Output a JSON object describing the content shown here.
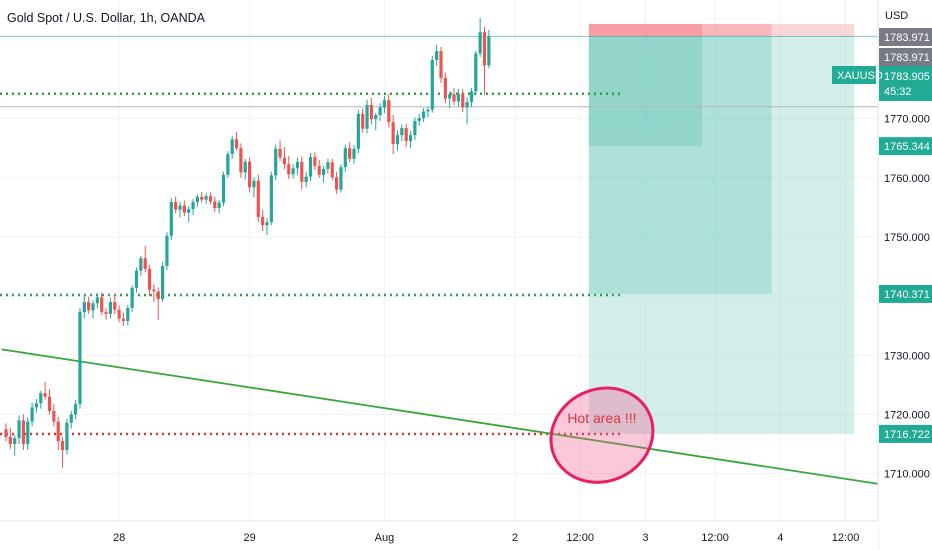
{
  "chart_data": {
    "type": "candlestick",
    "title": "Gold Spot / U.S. Dollar, 1h, OANDA",
    "currency_label": "USD",
    "symbol": "XAUUSD",
    "countdown": "45:32",
    "y_range": [
      1702,
      1787
    ],
    "y_ticks": [
      1710,
      1720,
      1730,
      1740,
      1750,
      1760,
      1770
    ],
    "y_tick_labels": [
      "1710.000",
      "1720.000",
      "1730.000",
      "1740.000",
      "1750.000",
      "1760.000",
      "1770.000"
    ],
    "x_ticks": [
      {
        "label": "28",
        "bar": 26
      },
      {
        "label": "29",
        "bar": 56
      },
      {
        "label": "Aug",
        "bar": 87
      },
      {
        "label": "2",
        "bar": 117
      },
      {
        "label": "12:00",
        "bar": 132
      },
      {
        "label": "3",
        "bar": 147
      },
      {
        "label": "12:00",
        "bar": 163
      },
      {
        "label": "4",
        "bar": 178
      },
      {
        "label": "12:00",
        "bar": 193
      }
    ],
    "price_levels": [
      {
        "name": "current price",
        "value": 1783.905,
        "color": "#22ab94",
        "label": "1783.905"
      },
      {
        "name": "stop level",
        "value": 1783.971,
        "color": "#787b86",
        "label": "1783.971"
      },
      {
        "name": "upper stop",
        "value": 1783.971,
        "color": "#787b86",
        "label": "1783.971"
      },
      {
        "name": "target 1",
        "value": 1765.344,
        "color": "#22ab94",
        "label": "1765.344"
      },
      {
        "name": "target 2",
        "value": 1740.371,
        "color": "#22ab94",
        "label": "1740.371"
      },
      {
        "name": "target 3",
        "value": 1716.722,
        "color": "#22ab94",
        "label": "1716.722"
      }
    ],
    "horizontal_lines": [
      {
        "value": 1774.2,
        "style": "dotted",
        "color": "#2e9e4a"
      },
      {
        "value": 1740.2,
        "style": "dotted",
        "color": "#2e9e4a"
      },
      {
        "value": 1716.7,
        "style": "dotted",
        "color": "#e0323c"
      },
      {
        "value": 1772.0,
        "style": "solid",
        "color": "#b2b5be"
      }
    ],
    "trendline": {
      "from": {
        "bar": -1,
        "value": 1731.0
      },
      "to": {
        "bar": 203,
        "value": 1708.0
      },
      "color": "#3aa63a"
    },
    "positions": [
      {
        "entry": 1783.9,
        "stop": 1786.0,
        "target": 1765.344,
        "start_bar": 134,
        "end_bar": 160
      },
      {
        "entry": 1783.9,
        "stop": 1786.0,
        "target": 1740.371,
        "start_bar": 134,
        "end_bar": 176
      },
      {
        "entry": 1783.9,
        "stop": 1786.0,
        "target": 1716.722,
        "start_bar": 134,
        "end_bar": 195
      }
    ],
    "annotation": {
      "text": "Hot area !!!",
      "bar": 137,
      "value": 1716.5
    },
    "candles": [
      [
        1717.5,
        1718.5,
        1715.5,
        1716.2
      ],
      [
        1716.2,
        1717.8,
        1714.2,
        1715.0
      ],
      [
        1715.0,
        1716.5,
        1713.0,
        1716.0
      ],
      [
        1716.0,
        1719.8,
        1715.0,
        1719.0
      ],
      [
        1719.0,
        1720.0,
        1714.0,
        1715.0
      ],
      [
        1715.0,
        1719.5,
        1714.0,
        1718.8
      ],
      [
        1718.8,
        1722.0,
        1718.0,
        1721.2
      ],
      [
        1721.2,
        1722.6,
        1720.3,
        1721.9
      ],
      [
        1721.9,
        1724.0,
        1721.0,
        1723.6
      ],
      [
        1723.6,
        1725.5,
        1722.5,
        1723.0
      ],
      [
        1723.0,
        1724.3,
        1720.0,
        1720.6
      ],
      [
        1720.6,
        1721.8,
        1718.0,
        1718.8
      ],
      [
        1718.8,
        1719.6,
        1714.0,
        1715.5
      ],
      [
        1715.5,
        1716.2,
        1711.0,
        1714.0
      ],
      [
        1714.0,
        1719.2,
        1713.2,
        1718.6
      ],
      [
        1718.6,
        1720.6,
        1717.6,
        1720.0
      ],
      [
        1720.0,
        1722.5,
        1719.2,
        1721.8
      ],
      [
        1721.8,
        1738.0,
        1721.0,
        1737.3
      ],
      [
        1737.3,
        1740.0,
        1736.3,
        1739.0
      ],
      [
        1739.0,
        1739.9,
        1737.0,
        1737.6
      ],
      [
        1737.6,
        1739.3,
        1736.2,
        1738.8
      ],
      [
        1738.8,
        1740.5,
        1737.9,
        1739.8
      ],
      [
        1739.8,
        1740.6,
        1736.8,
        1737.3
      ],
      [
        1737.3,
        1738.0,
        1736.0,
        1737.0
      ],
      [
        1737.0,
        1739.8,
        1736.2,
        1739.0
      ],
      [
        1739.0,
        1740.2,
        1737.0,
        1737.7
      ],
      [
        1737.7,
        1738.4,
        1735.6,
        1736.2
      ],
      [
        1736.2,
        1737.2,
        1735.0,
        1735.8
      ],
      [
        1735.8,
        1738.5,
        1735.0,
        1738.0
      ],
      [
        1738.0,
        1741.8,
        1737.3,
        1741.4
      ],
      [
        1741.4,
        1744.8,
        1740.6,
        1744.3
      ],
      [
        1744.3,
        1746.8,
        1743.4,
        1746.4
      ],
      [
        1746.4,
        1748.5,
        1744.0,
        1744.6
      ],
      [
        1744.6,
        1745.3,
        1740.0,
        1741.1
      ],
      [
        1741.1,
        1742.0,
        1739.0,
        1740.8
      ],
      [
        1740.8,
        1741.5,
        1736.0,
        1739.5
      ],
      [
        1739.5,
        1745.8,
        1739.0,
        1745.1
      ],
      [
        1745.1,
        1750.8,
        1744.4,
        1750.2
      ],
      [
        1750.2,
        1756.6,
        1749.5,
        1755.9
      ],
      [
        1755.9,
        1756.8,
        1754.0,
        1754.6
      ],
      [
        1754.6,
        1756.0,
        1753.3,
        1755.3
      ],
      [
        1755.3,
        1756.2,
        1753.5,
        1754.1
      ],
      [
        1754.1,
        1755.2,
        1752.5,
        1754.7
      ],
      [
        1754.7,
        1756.4,
        1753.7,
        1755.9
      ],
      [
        1755.9,
        1757.2,
        1755.1,
        1756.8
      ],
      [
        1756.8,
        1757.6,
        1755.8,
        1756.3
      ],
      [
        1756.3,
        1757.4,
        1755.6,
        1756.9
      ],
      [
        1756.9,
        1757.5,
        1755.5,
        1756.0
      ],
      [
        1756.0,
        1756.8,
        1754.2,
        1754.9
      ],
      [
        1754.9,
        1756.2,
        1754.0,
        1755.8
      ],
      [
        1755.8,
        1761.0,
        1755.2,
        1760.5
      ],
      [
        1760.5,
        1764.5,
        1760.0,
        1764.0
      ],
      [
        1764.0,
        1767.1,
        1763.2,
        1766.5
      ],
      [
        1766.5,
        1767.8,
        1764.6,
        1765.0
      ],
      [
        1765.0,
        1765.8,
        1760.0,
        1760.9
      ],
      [
        1760.9,
        1763.2,
        1759.7,
        1762.7
      ],
      [
        1762.7,
        1763.4,
        1757.5,
        1758.4
      ],
      [
        1758.4,
        1760.1,
        1756.7,
        1759.5
      ],
      [
        1759.5,
        1760.5,
        1752.5,
        1753.4
      ],
      [
        1753.4,
        1754.6,
        1751.0,
        1752.0
      ],
      [
        1752.0,
        1753.2,
        1750.3,
        1752.5
      ],
      [
        1752.5,
        1761.0,
        1752.0,
        1760.4
      ],
      [
        1760.4,
        1765.6,
        1759.6,
        1764.9
      ],
      [
        1764.9,
        1766.3,
        1762.8,
        1763.4
      ],
      [
        1763.4,
        1765.2,
        1761.5,
        1762.3
      ],
      [
        1762.3,
        1763.7,
        1759.8,
        1760.6
      ],
      [
        1760.6,
        1762.3,
        1759.9,
        1761.6
      ],
      [
        1761.6,
        1763.4,
        1760.5,
        1762.7
      ],
      [
        1762.7,
        1763.6,
        1758.0,
        1759.3
      ],
      [
        1759.3,
        1761.0,
        1758.4,
        1760.2
      ],
      [
        1760.2,
        1764.2,
        1759.5,
        1763.5
      ],
      [
        1763.5,
        1764.3,
        1761.3,
        1762.0
      ],
      [
        1762.0,
        1763.0,
        1760.0,
        1760.5
      ],
      [
        1760.5,
        1762.0,
        1759.2,
        1761.5
      ],
      [
        1761.5,
        1763.2,
        1760.7,
        1762.6
      ],
      [
        1762.6,
        1763.2,
        1759.6,
        1760.1
      ],
      [
        1760.1,
        1761.0,
        1757.3,
        1758.0
      ],
      [
        1758.0,
        1762.3,
        1757.5,
        1761.8
      ],
      [
        1761.8,
        1765.6,
        1761.0,
        1765.0
      ],
      [
        1765.0,
        1766.0,
        1762.6,
        1763.2
      ],
      [
        1763.2,
        1765.5,
        1762.4,
        1764.9
      ],
      [
        1764.9,
        1771.5,
        1764.1,
        1770.8
      ],
      [
        1770.8,
        1771.7,
        1767.6,
        1768.3
      ],
      [
        1768.3,
        1773.2,
        1767.5,
        1772.3
      ],
      [
        1772.3,
        1773.5,
        1769.0,
        1769.9
      ],
      [
        1769.9,
        1771.0,
        1768.0,
        1770.6
      ],
      [
        1770.6,
        1772.6,
        1769.6,
        1771.9
      ],
      [
        1771.9,
        1773.8,
        1770.9,
        1773.1
      ],
      [
        1773.1,
        1774.2,
        1768.5,
        1769.4
      ],
      [
        1769.4,
        1770.6,
        1764.0,
        1765.7
      ],
      [
        1765.7,
        1768.0,
        1764.6,
        1767.2
      ],
      [
        1767.2,
        1769.0,
        1766.2,
        1768.4
      ],
      [
        1768.4,
        1769.1,
        1765.2,
        1766.2
      ],
      [
        1766.2,
        1767.9,
        1765.0,
        1767.2
      ],
      [
        1767.2,
        1770.2,
        1766.4,
        1769.6
      ],
      [
        1769.6,
        1770.8,
        1768.8,
        1770.1
      ],
      [
        1770.1,
        1771.8,
        1769.4,
        1771.2
      ],
      [
        1771.2,
        1772.0,
        1770.2,
        1771.5
      ],
      [
        1771.5,
        1780.6,
        1771.0,
        1779.9
      ],
      [
        1779.9,
        1782.5,
        1778.9,
        1781.4
      ],
      [
        1781.4,
        1782.1,
        1776.0,
        1776.9
      ],
      [
        1776.9,
        1777.8,
        1772.6,
        1773.4
      ],
      [
        1773.4,
        1774.6,
        1771.8,
        1774.1
      ],
      [
        1774.1,
        1775.2,
        1772.3,
        1772.9
      ],
      [
        1772.9,
        1775.0,
        1772.0,
        1774.2
      ],
      [
        1774.2,
        1775.0,
        1771.1,
        1771.9
      ],
      [
        1771.9,
        1773.6,
        1769.0,
        1772.8
      ],
      [
        1772.8,
        1775.2,
        1772.0,
        1774.6
      ],
      [
        1774.6,
        1781.5,
        1774.0,
        1781.0
      ],
      [
        1781.0,
        1787.0,
        1780.4,
        1784.6
      ],
      [
        1784.6,
        1785.5,
        1774.0,
        1779.0
      ],
      [
        1779.0,
        1785.0,
        1778.5,
        1783.9
      ]
    ]
  }
}
